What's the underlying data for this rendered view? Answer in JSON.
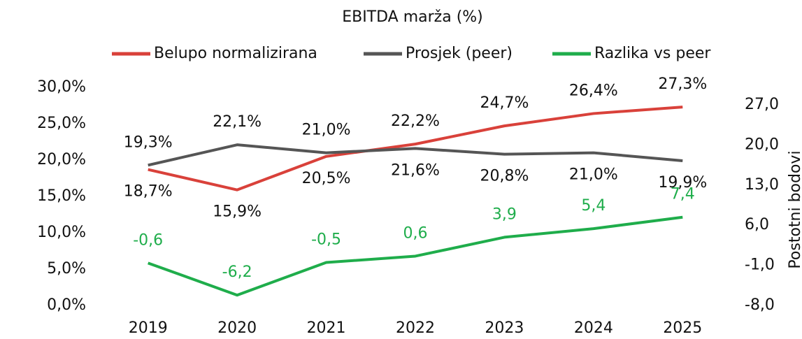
{
  "chart_data": {
    "type": "line",
    "title": "EBITDA marža (%)",
    "y2_label": "Postotni bodovi",
    "categories": [
      "2019",
      "2020",
      "2021",
      "2022",
      "2023",
      "2024",
      "2025"
    ],
    "series": [
      {
        "name": "Belupo normalizirana",
        "color": "#d9413a",
        "values": [
          18.7,
          15.9,
          20.5,
          22.2,
          24.7,
          26.4,
          27.3
        ],
        "value_labels": [
          "18,7%",
          "15,9%",
          "20,5%",
          "22,2%",
          "24,7%",
          "26,4%",
          "27,3%"
        ]
      },
      {
        "name": "Prosjek (peer)",
        "color": "#555555",
        "values": [
          19.3,
          22.1,
          21.0,
          21.6,
          20.8,
          21.0,
          19.9
        ],
        "value_labels": [
          "19,3%",
          "22,1%",
          "21,0%",
          "21,6%",
          "20,8%",
          "21,0%",
          "19,9%"
        ]
      },
      {
        "name": "Razlika vs peer",
        "color": "#1fad4b",
        "axis": "y2",
        "values": [
          -0.6,
          -6.2,
          -0.5,
          0.6,
          3.9,
          5.4,
          7.4
        ],
        "value_labels": [
          "-0,6",
          "-6,2",
          "-0,5",
          "0,6",
          "3,9",
          "5,4",
          "7,4"
        ]
      }
    ],
    "ylim": [
      0,
      30
    ],
    "yticks": [
      {
        "value": 0,
        "label": "0,0%"
      },
      {
        "value": 5,
        "label": "5,0%"
      },
      {
        "value": 10,
        "label": "10,0%"
      },
      {
        "value": 15,
        "label": "15,0%"
      },
      {
        "value": 20,
        "label": "20,0%"
      },
      {
        "value": 25,
        "label": "25,0%"
      },
      {
        "value": 30,
        "label": "30,0%"
      }
    ],
    "y2lim": [
      -8,
      27
    ],
    "y2ticks": [
      {
        "value": -8,
        "label": "-8,0"
      },
      {
        "value": -1,
        "label": "-1,0"
      },
      {
        "value": 6,
        "label": "6,0"
      },
      {
        "value": 13,
        "label": "13,0"
      },
      {
        "value": 20,
        "label": "20,0"
      },
      {
        "value": 27,
        "label": "27,0"
      }
    ],
    "legend": "top",
    "grid": false
  }
}
